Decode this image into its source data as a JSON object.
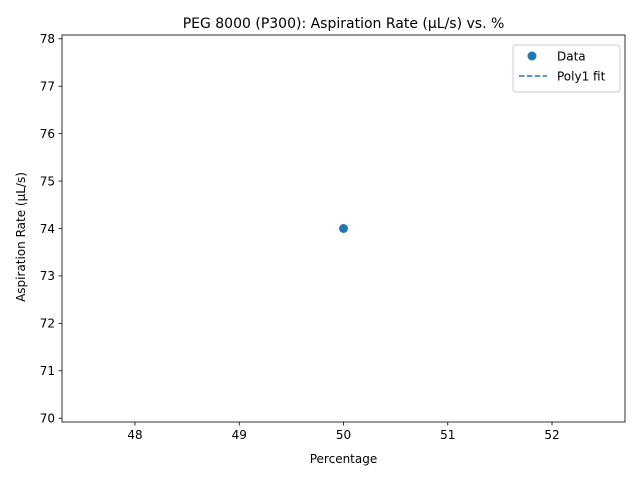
{
  "chart_data": {
    "type": "scatter",
    "title": "PEG 8000 (P300): Aspiration Rate (µL/s) vs. %",
    "xlabel": "Percentage",
    "ylabel": "Aspiration Rate (µL/s)",
    "xlim": [
      47.3,
      52.7
    ],
    "ylim": [
      69.92,
      78.08
    ],
    "xticks": [
      48,
      49,
      50,
      51,
      52
    ],
    "yticks": [
      70,
      71,
      72,
      73,
      74,
      75,
      76,
      77,
      78
    ],
    "grid": false,
    "legend_position": "top-right",
    "series": [
      {
        "name": "Data",
        "kind": "scatter",
        "color": "#1f77b4",
        "points": [
          {
            "x": 50,
            "y": 74
          }
        ]
      },
      {
        "name": "Poly1 fit",
        "kind": "line",
        "style": "dashed",
        "color": "#1f77b4",
        "points": []
      }
    ]
  }
}
